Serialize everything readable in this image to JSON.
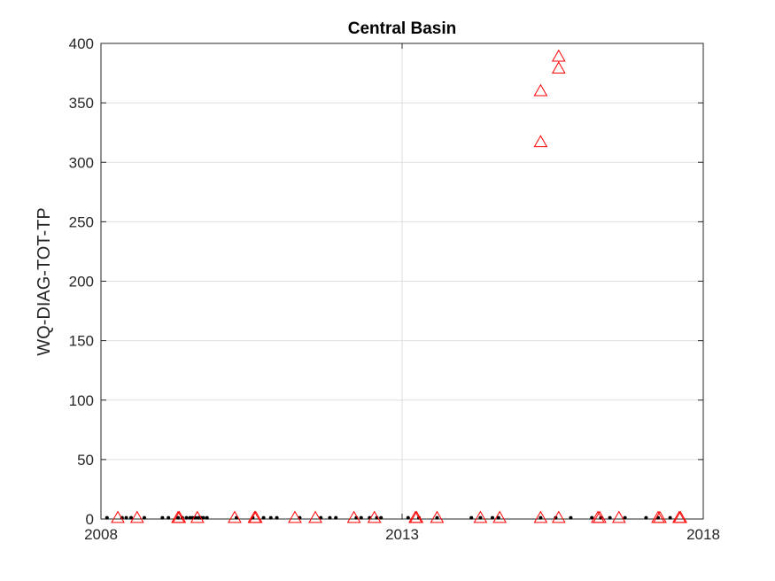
{
  "chart_data": {
    "type": "scatter",
    "title": "Central Basin",
    "xlabel": "",
    "ylabel": "WQ-DIAG-TOT-TP",
    "xlim": [
      2008,
      2018
    ],
    "ylim": [
      0,
      400
    ],
    "xticks": [
      2008,
      2013,
      2018
    ],
    "xtick_labels": [
      "2008",
      "2013",
      "2018"
    ],
    "yticks": [
      0,
      50,
      100,
      150,
      200,
      250,
      300,
      350,
      400
    ],
    "ytick_labels": [
      "0",
      "50",
      "100",
      "150",
      "200",
      "250",
      "300",
      "350",
      "400"
    ],
    "grid": true,
    "legend": "none",
    "series": [
      {
        "marker": "dot",
        "color": "#000000",
        "x": [
          2008.1,
          2008.35,
          2008.42,
          2008.5,
          2008.72,
          2009.02,
          2009.12,
          2009.28,
          2009.35,
          2009.42,
          2009.48,
          2009.52,
          2009.57,
          2009.62,
          2009.66,
          2009.7,
          2009.76,
          2010.25,
          2010.52,
          2010.7,
          2010.82,
          2010.92,
          2011.3,
          2011.65,
          2011.8,
          2011.9,
          2012.24,
          2012.32,
          2012.46,
          2012.58,
          2012.65,
          2013.1,
          2013.28,
          2013.58,
          2014.15,
          2014.3,
          2014.5,
          2014.6,
          2015.3,
          2015.55,
          2015.8,
          2016.15,
          2016.3,
          2016.45,
          2016.7,
          2017.05,
          2017.25,
          2017.45
        ],
        "y": [
          1,
          1,
          1,
          1,
          1,
          1,
          1,
          1,
          1,
          1,
          1,
          1,
          1,
          1,
          1,
          1,
          1,
          1,
          1,
          1,
          1,
          1,
          1,
          1,
          1,
          1,
          1,
          1,
          1,
          1,
          1,
          1,
          1,
          1,
          1,
          1,
          1,
          1,
          1,
          1,
          1,
          1,
          1,
          1,
          1,
          1,
          1,
          1
        ]
      },
      {
        "marker": "triangle",
        "color": "#ff0000",
        "x": [
          2008.28,
          2008.6,
          2009.28,
          2009.3,
          2009.6,
          2010.22,
          2010.55,
          2010.57,
          2011.22,
          2011.56,
          2012.2,
          2012.54,
          2013.22,
          2013.24,
          2013.58,
          2014.3,
          2014.62,
          2015.3,
          2015.6,
          2016.25,
          2016.28,
          2016.6,
          2017.25,
          2017.28,
          2017.6,
          2017.62,
          2015.3,
          2015.3,
          2015.6,
          2015.6
        ],
        "y": [
          1,
          1,
          1,
          1,
          1,
          1,
          1,
          1,
          1,
          1,
          1,
          1,
          1,
          1,
          1,
          1,
          1,
          1,
          1,
          1,
          1,
          1,
          1,
          1,
          1,
          1,
          317,
          360,
          379,
          389
        ]
      }
    ]
  }
}
